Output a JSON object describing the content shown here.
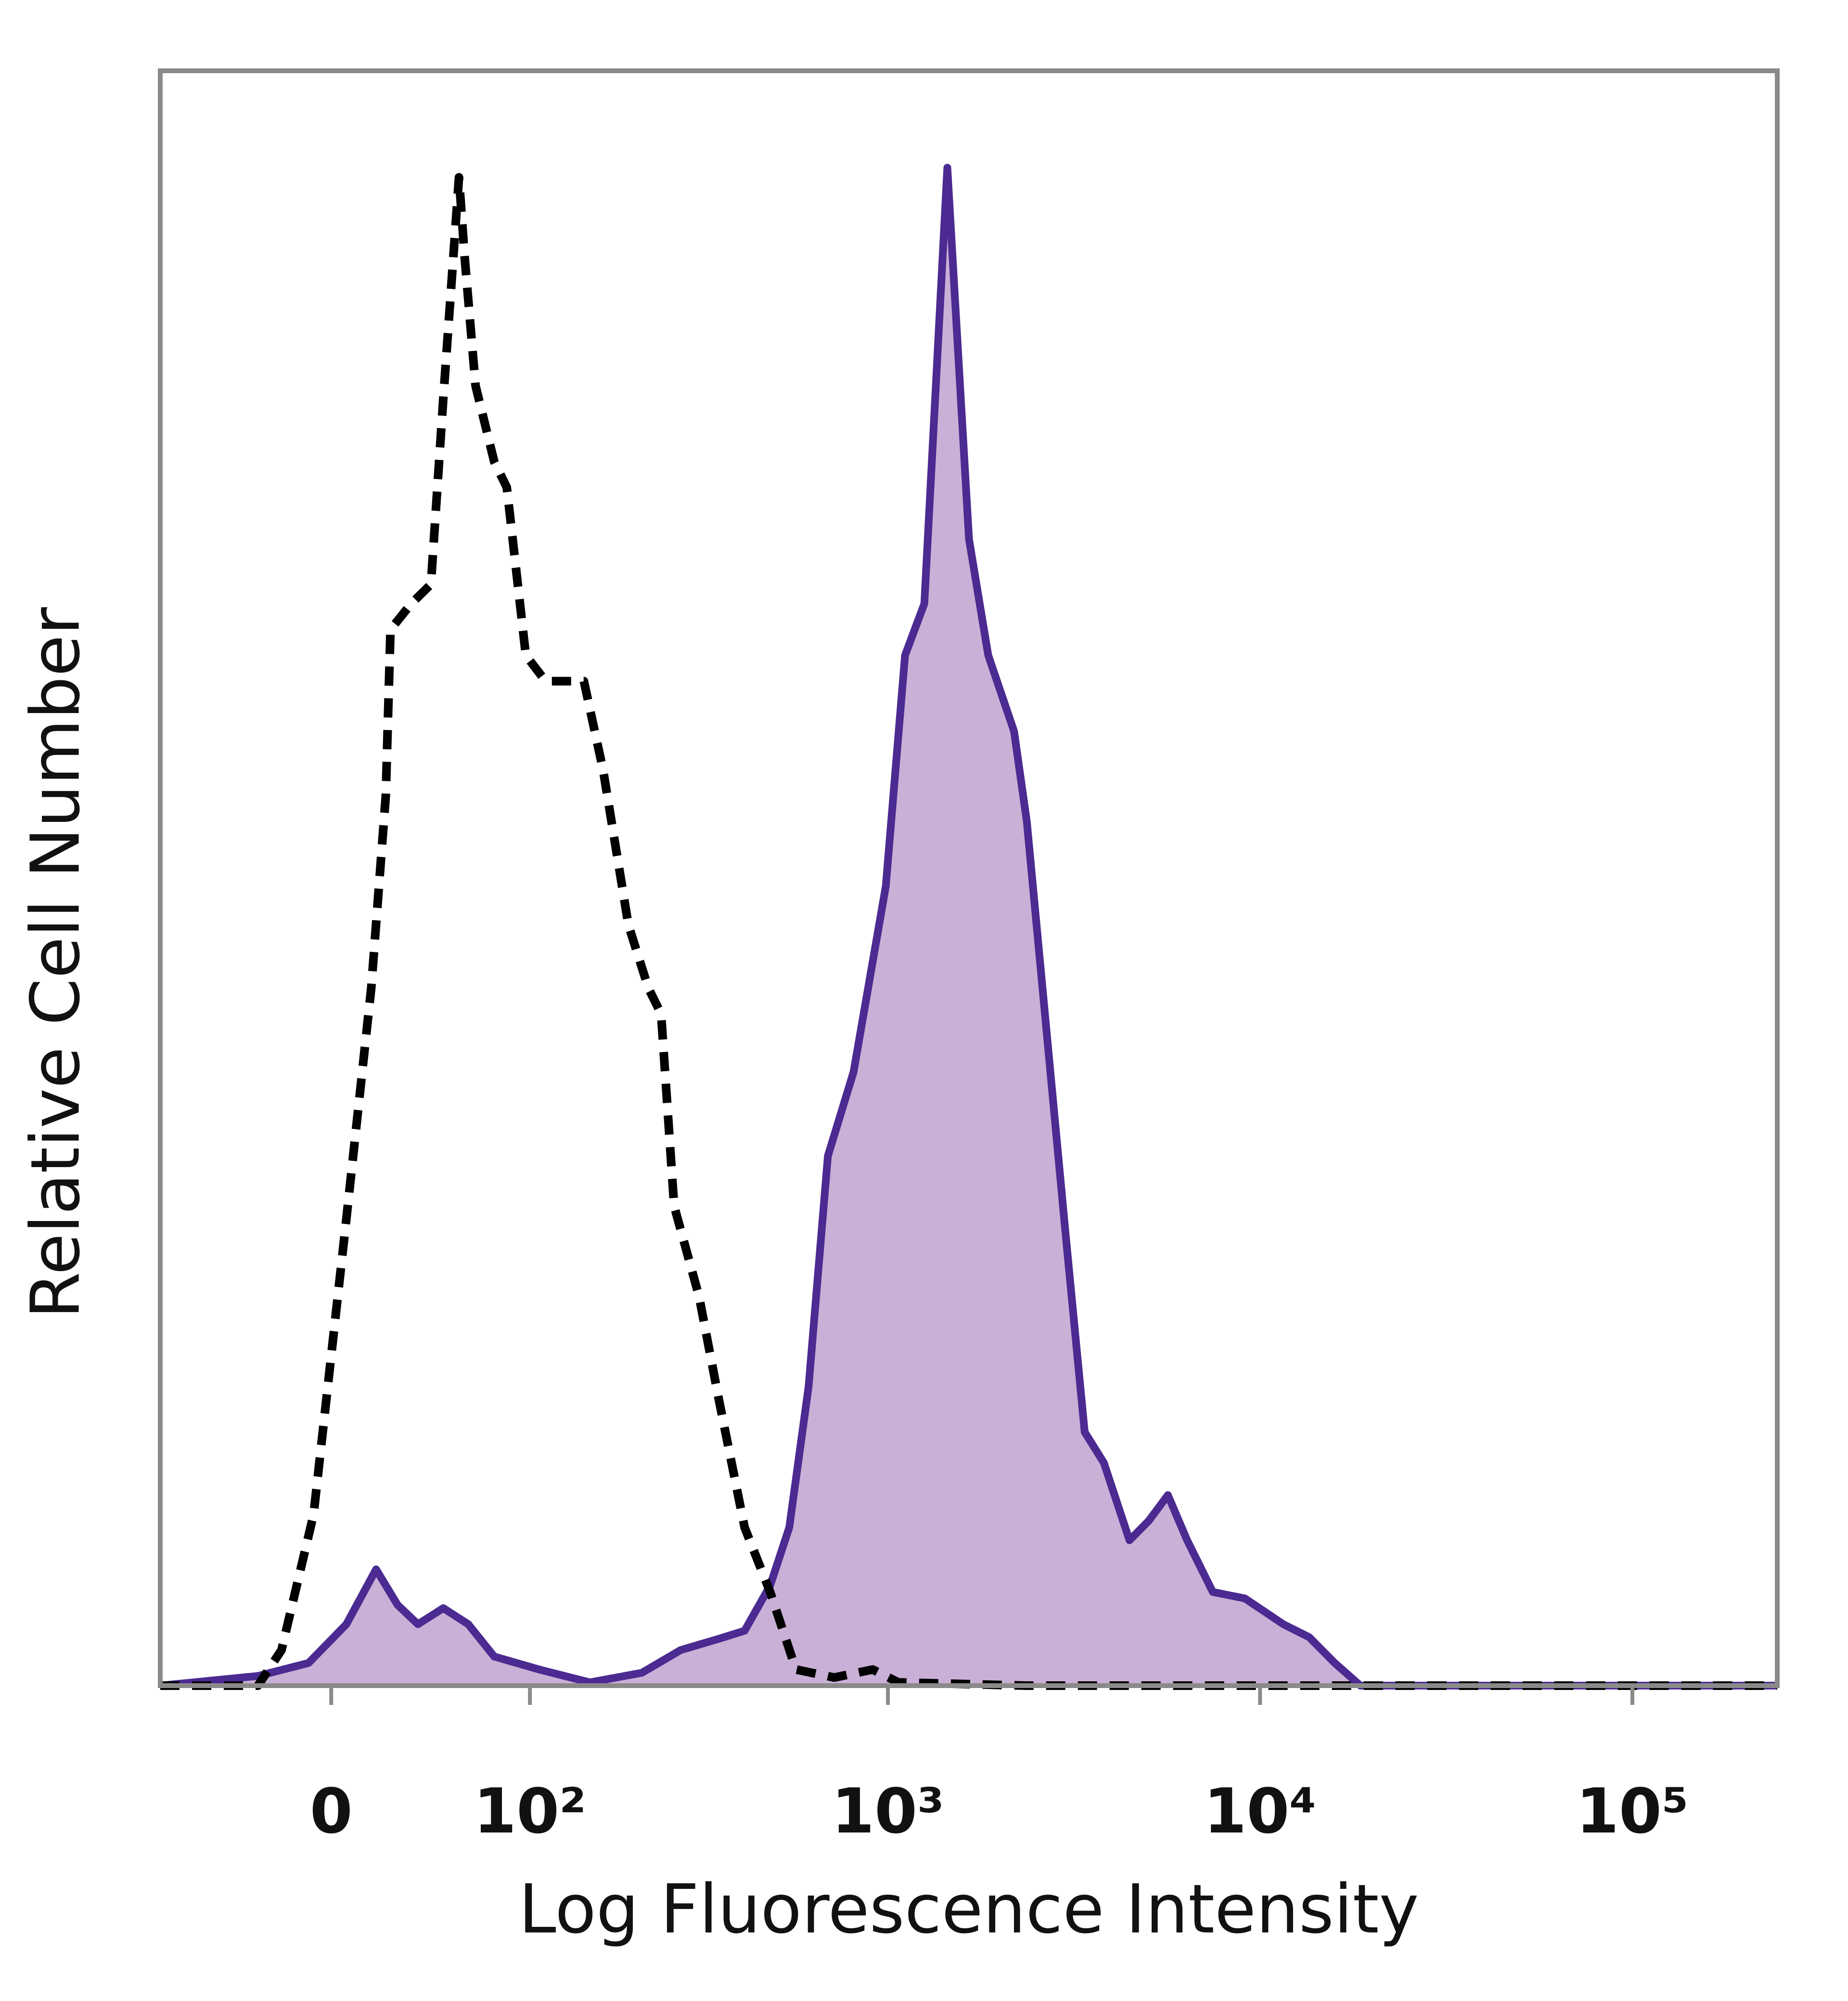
{
  "chart_data": {
    "type": "histogram-overlay",
    "x_label": "Log Fluorescence Intensity",
    "y_label": "Relative Cell Number",
    "x_scale": "biexponential",
    "xlim": [
      -81,
      245000
    ],
    "ylim": [
      0,
      100
    ],
    "xticks": [
      {
        "value": 0,
        "label": "0"
      },
      {
        "value": 100,
        "label": "10²"
      },
      {
        "value": 1000,
        "label": "10³"
      },
      {
        "value": 10000,
        "label": "10⁴"
      },
      {
        "value": 100000,
        "label": "10⁵"
      }
    ],
    "grid": false,
    "series": [
      {
        "color": "#4b2a91",
        "fill": "#c9b0d6",
        "dashed": false,
        "x": [
          -81,
          -30,
          -9,
          6,
          18,
          27,
          36,
          48,
          61,
          76,
          107,
          152,
          214,
          274,
          349,
          410,
          481,
          542,
          611,
          689,
          808,
          987,
          1112,
          1253,
          1445,
          1652,
          1861,
          2183,
          2363,
          2663,
          3000,
          3380,
          3805,
          4460,
          5020,
          5655,
          6370,
          7465,
          9105,
          11550,
          13550,
          15870,
          18600,
          245000
        ],
        "values": [
          0,
          0.6,
          1.4,
          3.8,
          7.2,
          5.0,
          3.8,
          4.8,
          3.8,
          1.8,
          1.0,
          0.2,
          0.8,
          2.2,
          2.9,
          3.4,
          6.2,
          9.8,
          18.5,
          32.8,
          38.0,
          49.5,
          63.8,
          67.0,
          94.0,
          71.0,
          63.8,
          59.1,
          53.5,
          40.8,
          28.1,
          15.7,
          13.8,
          9.0,
          10.2,
          11.8,
          9.0,
          5.8,
          5.4,
          3.8,
          3.0,
          1.4,
          0,
          0
        ]
      },
      {
        "color": "#000000",
        "fill": null,
        "dashed": true,
        "x": [
          -81,
          -30,
          -20,
          -7,
          6,
          16,
          22,
          24,
          33,
          42,
          48,
          56,
          59,
          65,
          76,
          84,
          97,
          112,
          146,
          166,
          196,
          223,
          242,
          263,
          308,
          349,
          410,
          481,
          565,
          717,
          910,
          1067,
          2363,
          245000
        ],
        "values": [
          0,
          0,
          2.2,
          10.6,
          28.9,
          43.2,
          55.1,
          65.4,
          67.0,
          68.2,
          79.7,
          93.4,
          88.5,
          80.5,
          75.8,
          74.2,
          63.8,
          62.2,
          62.2,
          56.7,
          47.1,
          43.2,
          41.6,
          29.7,
          24.1,
          17.7,
          9.8,
          5.8,
          1.0,
          0.5,
          1.0,
          0.2,
          0,
          0
        ]
      }
    ]
  }
}
